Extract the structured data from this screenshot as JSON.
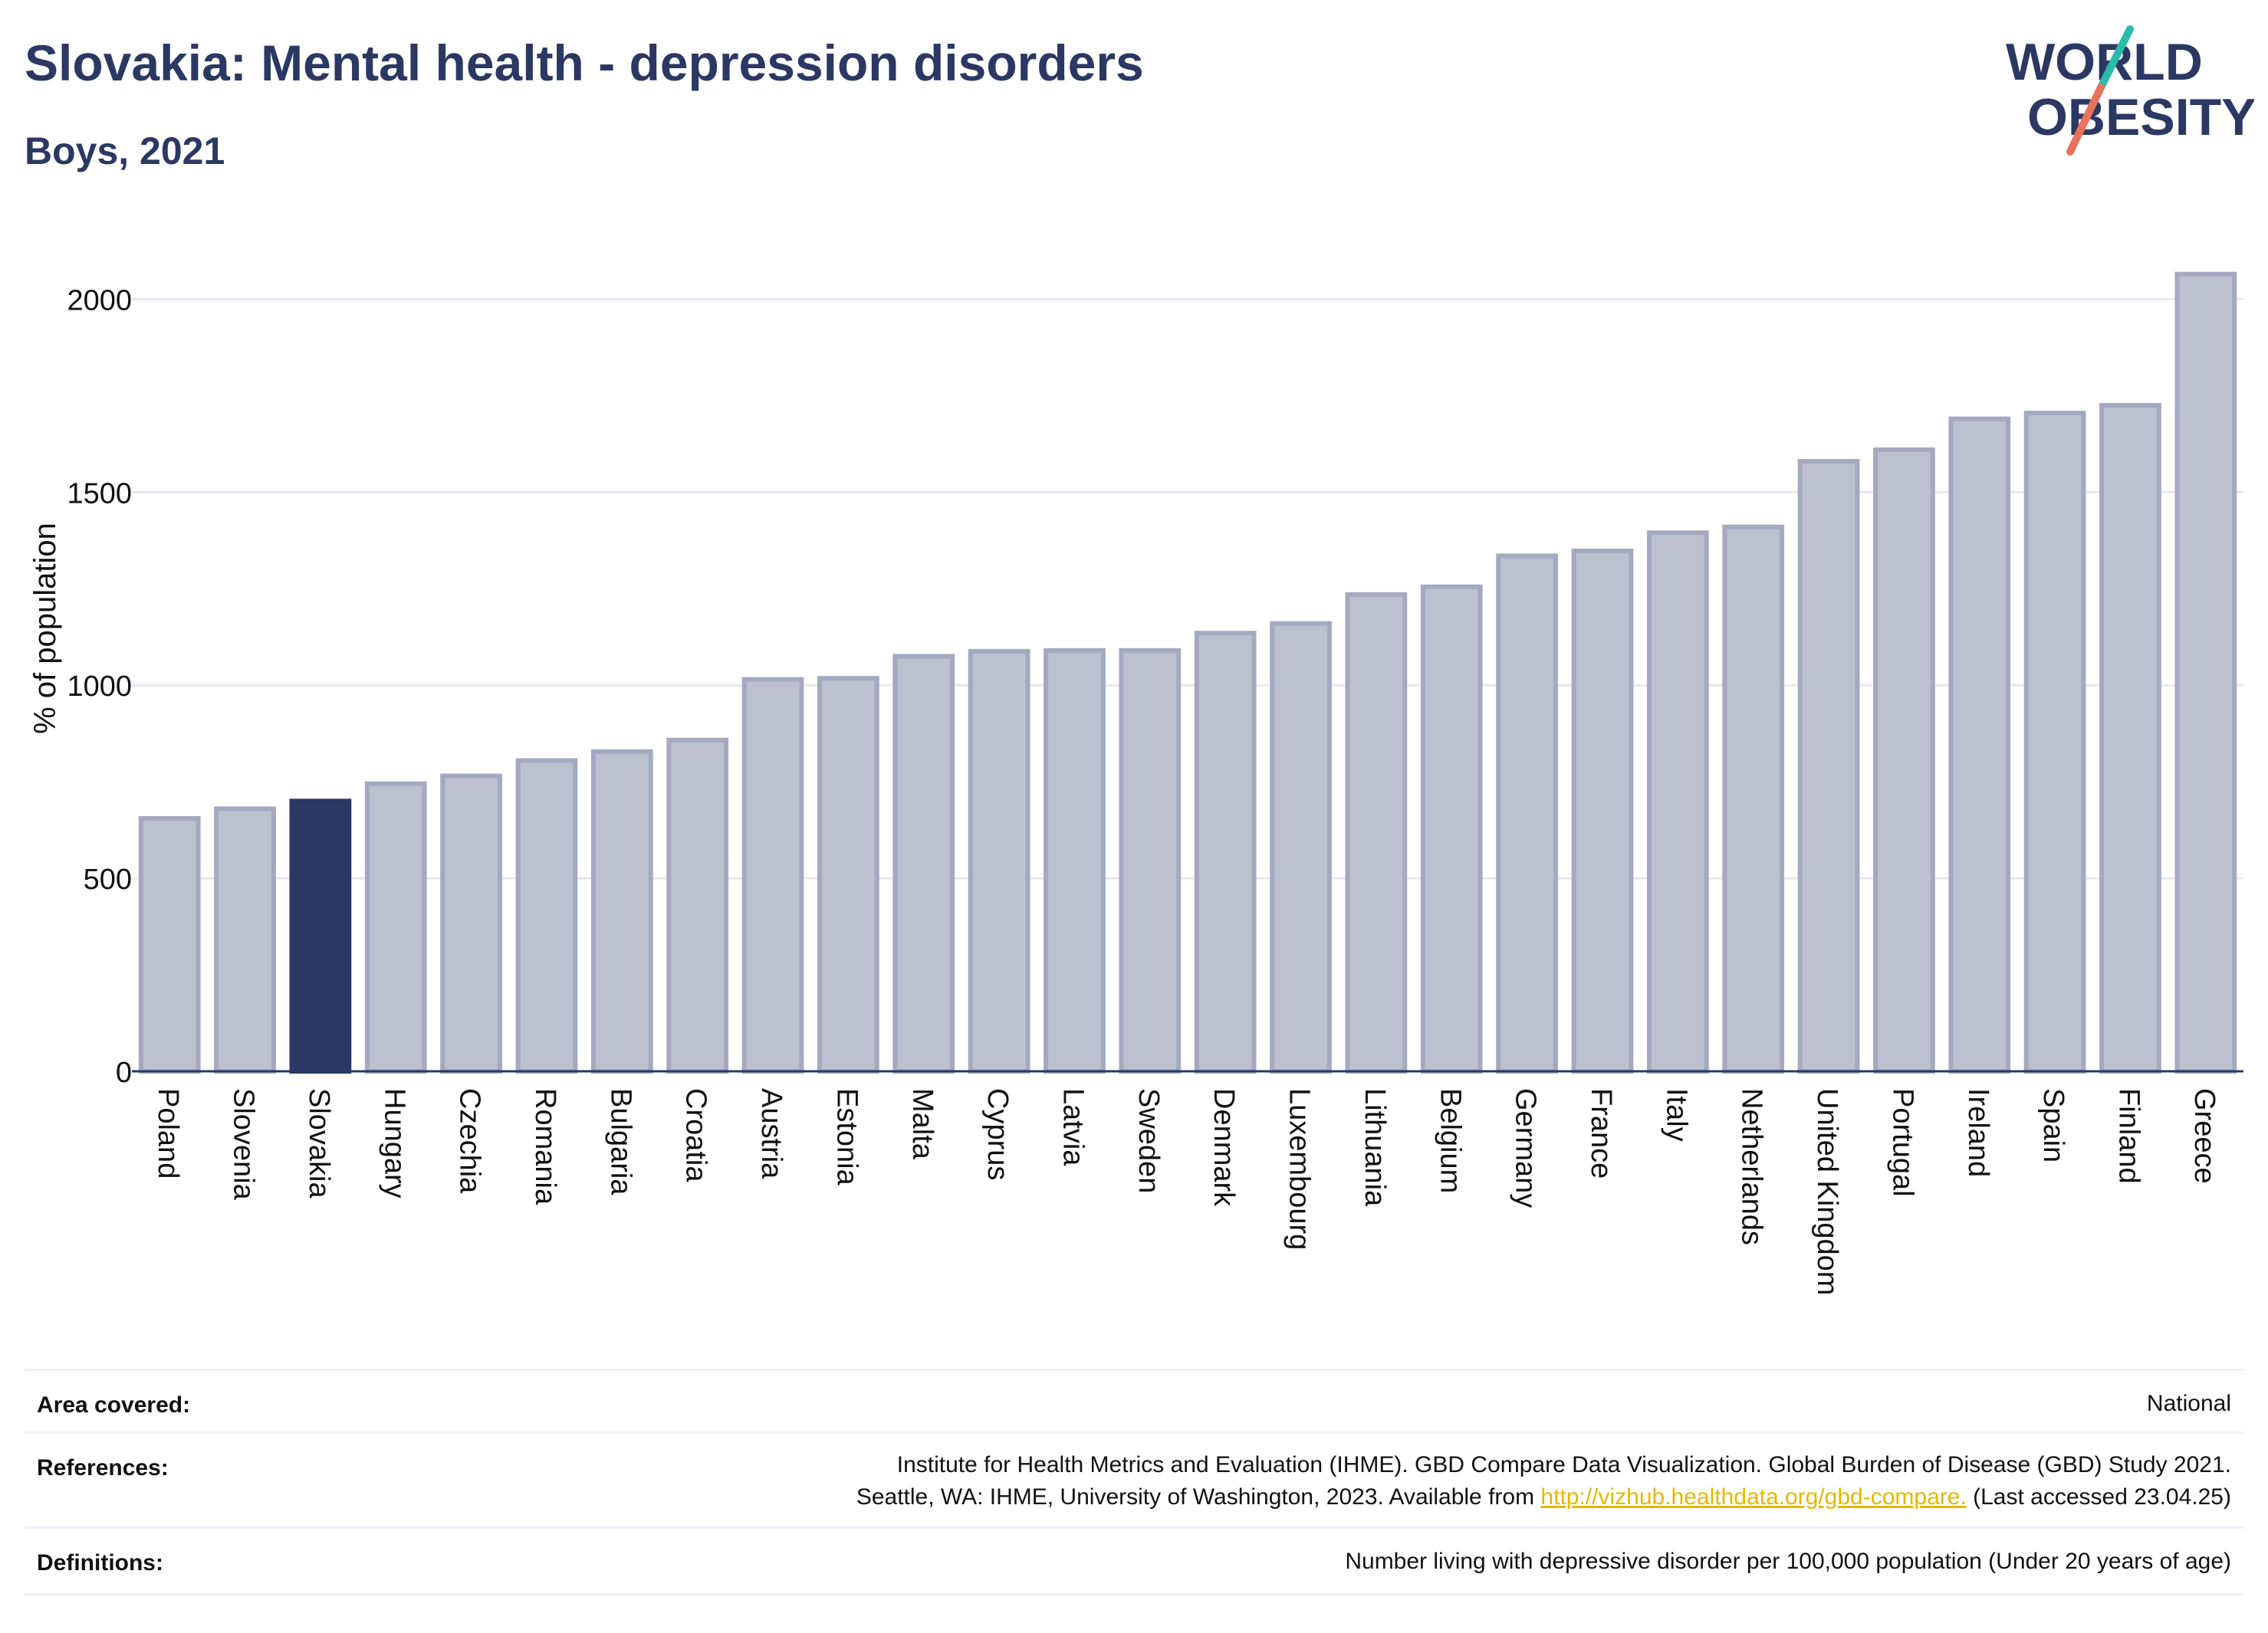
{
  "title": "Slovakia: Mental health - depression disorders",
  "subtitle": "Boys, 2021",
  "logo": {
    "line1": "WORLD",
    "line2": "OBESITY",
    "accent_teal": "#2bbbad",
    "accent_coral": "#e8735a",
    "text_color": "#2b3863"
  },
  "colors": {
    "bar": "#bcc0cf",
    "bar_stroke": "#a4a9bf",
    "highlight": "#2b3863",
    "grid": "#e6e8ef",
    "axis": "#2b3863"
  },
  "chart_data": {
    "type": "bar",
    "title": "Slovakia: Mental health - depression disorders",
    "subtitle": "Boys, 2021",
    "xlabel": "",
    "ylabel": "% of population",
    "ylim": [
      0,
      2100
    ],
    "yticks": [
      0,
      500,
      1000,
      1500,
      2000
    ],
    "grid": true,
    "highlight": "Slovakia",
    "categories": [
      "Poland",
      "Slovenia",
      "Slovakia",
      "Hungary",
      "Czechia",
      "Romania",
      "Bulgaria",
      "Croatia",
      "Austria",
      "Estonia",
      "Malta",
      "Cyprus",
      "Latvia",
      "Sweden",
      "Denmark",
      "Luxembourg",
      "Lithuania",
      "Belgium",
      "Germany",
      "France",
      "Italy",
      "Netherlands",
      "United Kingdom",
      "Portugal",
      "Ireland",
      "Spain",
      "Finland",
      "Greece"
    ],
    "values": [
      655,
      680,
      700,
      745,
      765,
      805,
      828,
      858,
      1015,
      1018,
      1075,
      1088,
      1090,
      1090,
      1135,
      1160,
      1235,
      1255,
      1335,
      1348,
      1395,
      1410,
      1580,
      1610,
      1690,
      1705,
      1725,
      2065
    ]
  },
  "meta": {
    "area_label": "Area covered:",
    "area_value": "National",
    "references_label": "References:",
    "references_line1": "Institute for Health Metrics and Evaluation (IHME). GBD Compare Data Visualization. Global Burden of Disease (GBD) Study 2021.",
    "references_line2_pre": "Seattle, WA: IHME, University of Washington, 2023. Available from ",
    "references_link": "http://vizhub.healthdata.org/gbd-compare.",
    "references_line2_post": " (Last accessed 23.04.25)",
    "definitions_label": "Definitions:",
    "definitions_value": "Number living with depressive disorder per 100,000 population (Under 20 years of age)"
  }
}
